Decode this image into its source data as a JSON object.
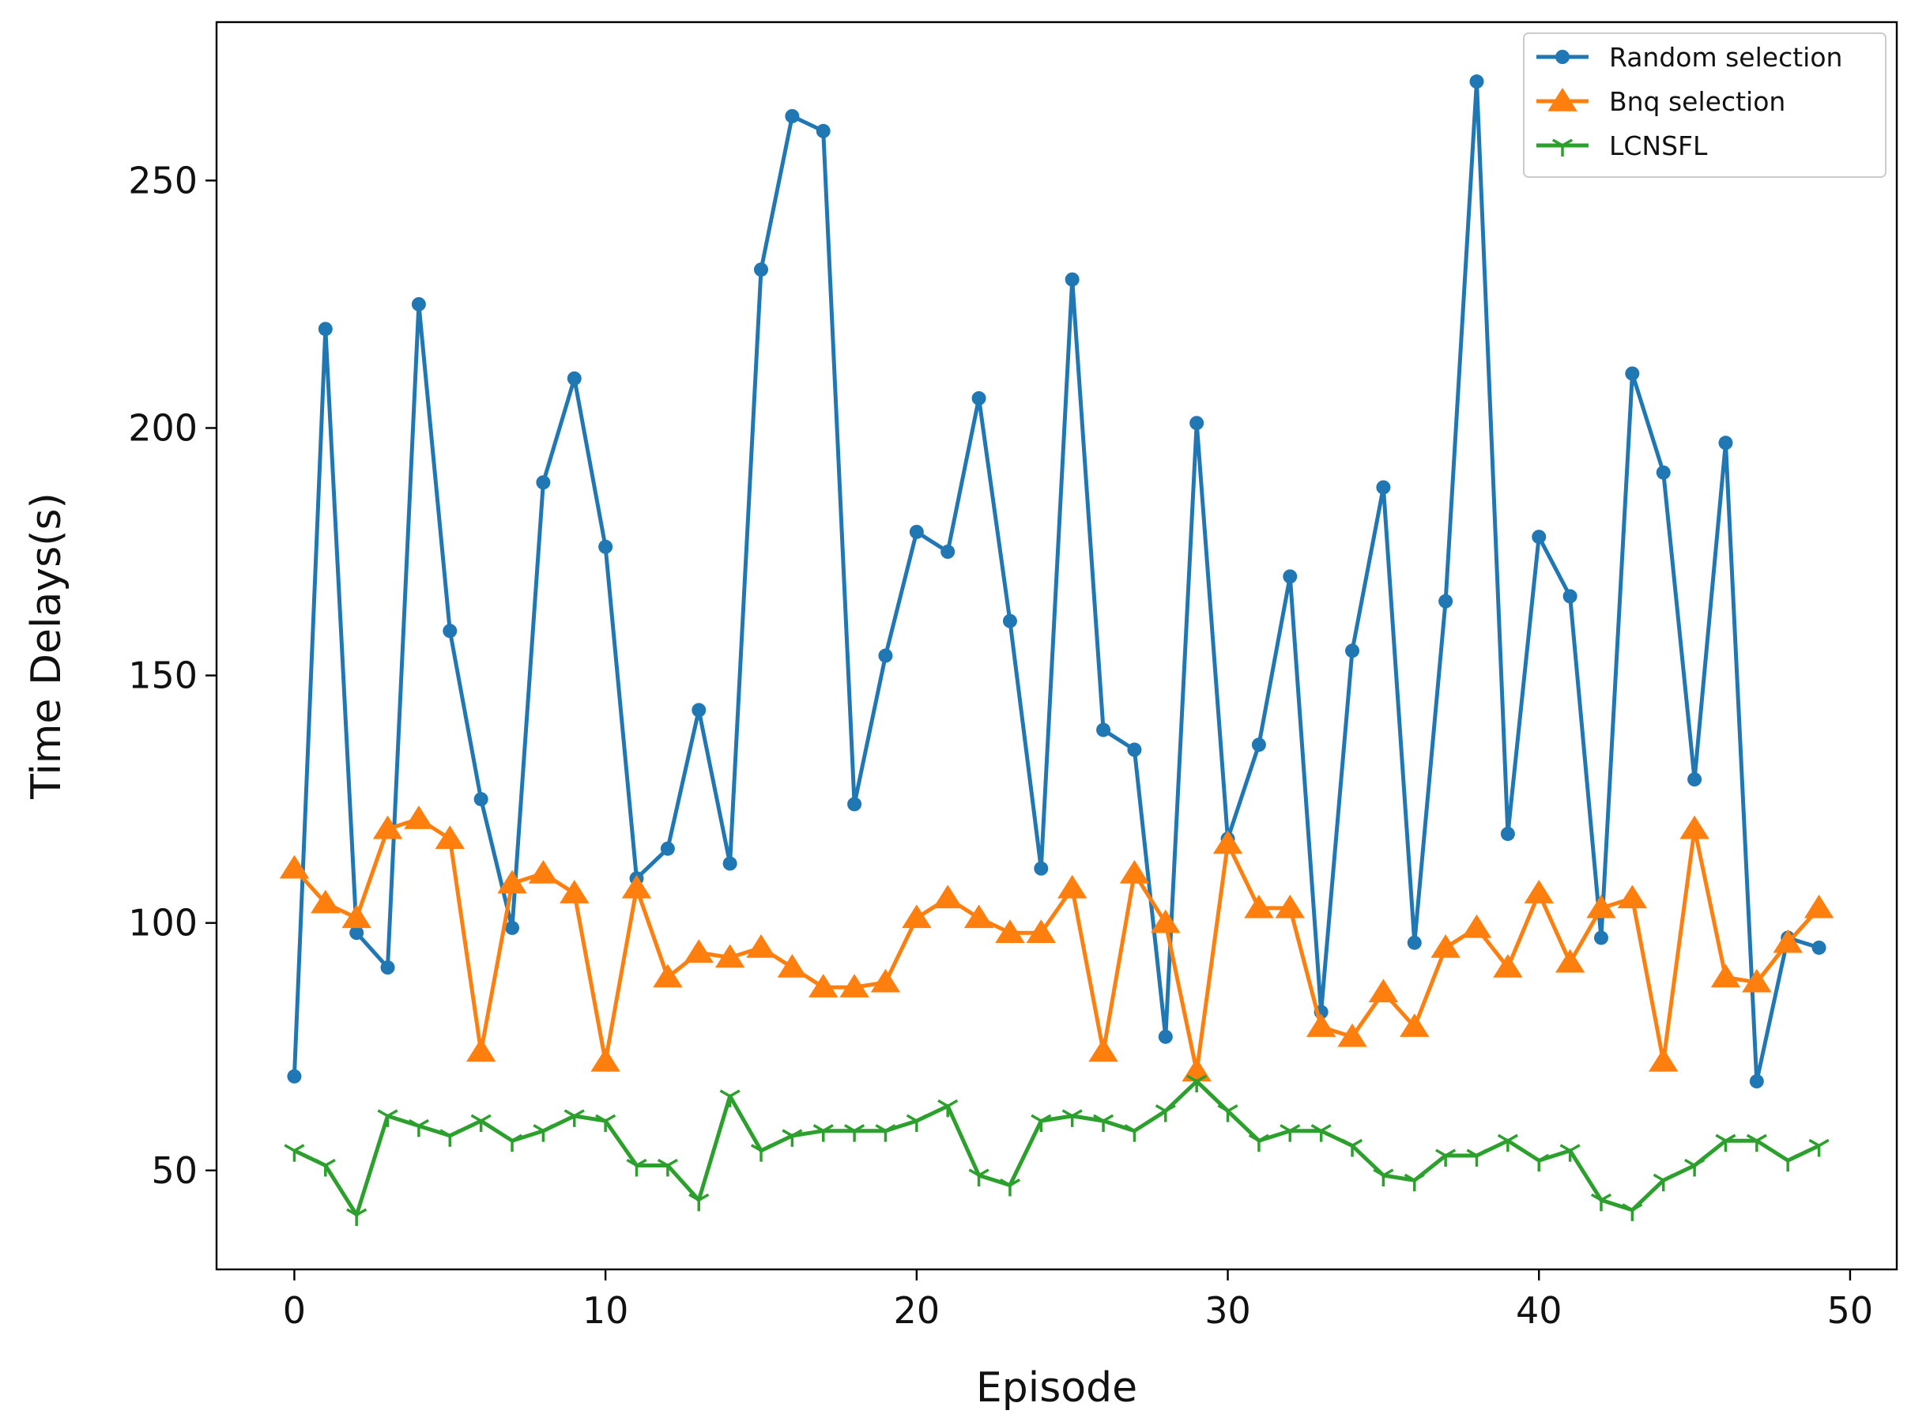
{
  "chart_data": {
    "type": "line",
    "title": "",
    "xlabel": "Episode",
    "ylabel": "Time Delays(s)",
    "xlim": [
      -2.5,
      51.5
    ],
    "ylim": [
      30,
      282
    ],
    "xticks": [
      0,
      10,
      20,
      30,
      40,
      50
    ],
    "yticks": [
      50,
      100,
      150,
      200,
      250
    ],
    "grid": false,
    "legend_position": "top-right",
    "x": [
      0,
      1,
      2,
      3,
      4,
      5,
      6,
      7,
      8,
      9,
      10,
      11,
      12,
      13,
      14,
      15,
      16,
      17,
      18,
      19,
      20,
      21,
      22,
      23,
      24,
      25,
      26,
      27,
      28,
      29,
      30,
      31,
      32,
      33,
      34,
      35,
      36,
      37,
      38,
      39,
      40,
      41,
      42,
      43,
      44,
      45,
      46,
      47,
      48,
      49
    ],
    "series": [
      {
        "name": "Random selection",
        "color": "#1f77b4",
        "marker": "circle",
        "values": [
          69,
          220,
          98,
          91,
          225,
          159,
          125,
          99,
          189,
          210,
          176,
          109,
          115,
          143,
          112,
          232,
          263,
          260,
          124,
          154,
          179,
          175,
          206,
          161,
          111,
          230,
          139,
          135,
          77,
          201,
          117,
          136,
          170,
          82,
          155,
          188,
          96,
          165,
          270,
          118,
          178,
          166,
          97,
          211,
          191,
          129,
          197,
          68,
          97,
          95
        ]
      },
      {
        "name": "Bnq selection",
        "color": "#ff7f0e",
        "marker": "triangle",
        "values": [
          111,
          104,
          101,
          119,
          121,
          117,
          74,
          108,
          110,
          106,
          72,
          107,
          89,
          94,
          93,
          95,
          91,
          87,
          87,
          88,
          101,
          105,
          101,
          98,
          98,
          107,
          74,
          110,
          100,
          70,
          116,
          103,
          103,
          79,
          77,
          86,
          79,
          95,
          99,
          91,
          106,
          92,
          103,
          105,
          72,
          119,
          89,
          88,
          96,
          103
        ]
      },
      {
        "name": "LCNSFL",
        "color": "#2ca02c",
        "marker": "tri_down",
        "values": [
          54,
          51,
          41,
          61,
          59,
          57,
          60,
          56,
          58,
          61,
          60,
          51,
          51,
          44,
          65,
          54,
          57,
          58,
          58,
          58,
          60,
          63,
          49,
          47,
          60,
          61,
          60,
          58,
          62,
          68,
          62,
          56,
          58,
          58,
          55,
          49,
          48,
          53,
          53,
          56,
          52,
          54,
          44,
          42,
          48,
          51,
          56,
          56,
          52,
          55
        ]
      }
    ]
  }
}
